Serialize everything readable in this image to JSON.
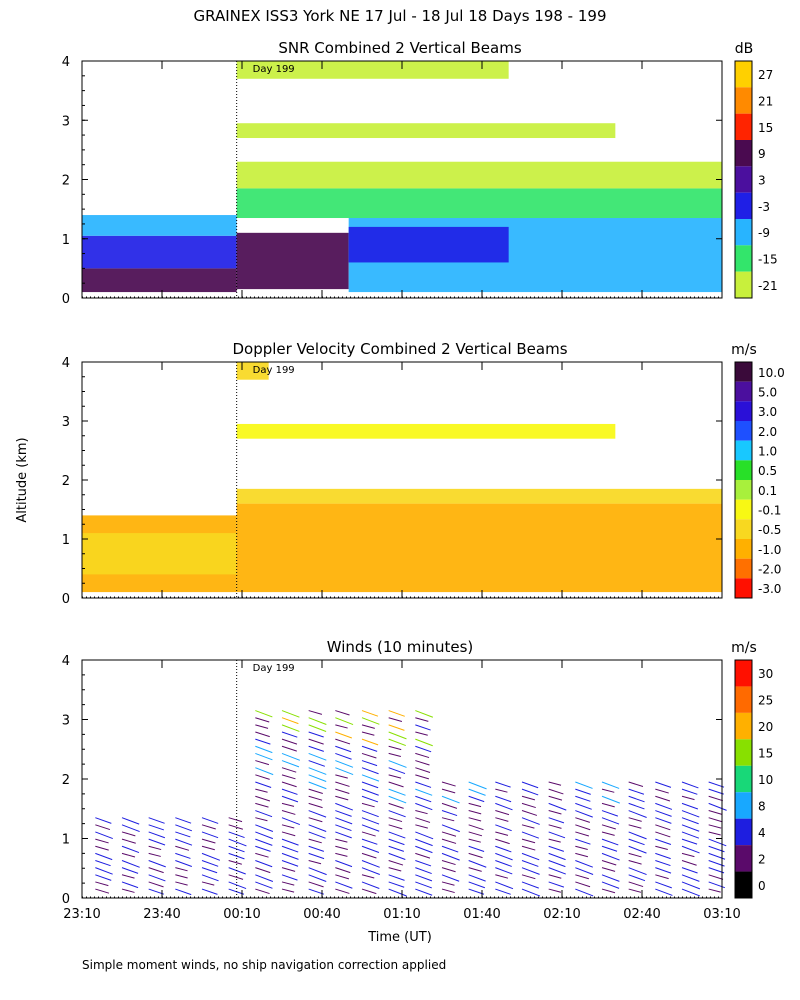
{
  "page": {
    "title": "GRAINEX ISS3 York NE  17 Jul - 18 Jul 18 Days 198 - 199",
    "footnote": "Simple moment winds, no ship navigation correction applied",
    "ylabel": "Altitude (km)",
    "xlabel": "Time (UT)",
    "day_marker": "Day 199"
  },
  "chart_data": [
    {
      "type": "heatmap",
      "title": "SNR Combined 2 Vertical Beams",
      "units": "dB",
      "xlabel": "Time (UT)",
      "ylabel": "Altitude (km)",
      "xlim": [
        0,
        240
      ],
      "x_ticks": [
        "23:10",
        "23:40",
        "00:10",
        "00:40",
        "01:10",
        "01:40",
        "02:10",
        "02:40",
        "03:10"
      ],
      "ylim": [
        0,
        4
      ],
      "y_ticks": [
        "0",
        "1",
        "2",
        "3",
        "4"
      ],
      "day_marker_x": 58,
      "colorbar_labels": [
        "27",
        "21",
        "15",
        "9",
        "3",
        "-3",
        "-9",
        "-15",
        "-21"
      ],
      "colorbar_colors": [
        "#ffd000",
        "#ff8a00",
        "#ff2400",
        "#4a0a50",
        "#4b0f9e",
        "#1f1fe6",
        "#28b4ff",
        "#33e56b",
        "#c8f03c"
      ],
      "bands": [
        {
          "y0": 0.1,
          "y1": 0.5,
          "x0": 0,
          "x1": 58,
          "color": "#4a0a50"
        },
        {
          "y0": 0.5,
          "y1": 1.05,
          "x0": 0,
          "x1": 58,
          "color": "#1f1fe6"
        },
        {
          "y0": 1.05,
          "y1": 1.4,
          "x0": 0,
          "x1": 58,
          "color": "#28b4ff"
        },
        {
          "y0": 0.15,
          "y1": 1.1,
          "x0": 58,
          "x1": 100,
          "color": "#4a0a50"
        },
        {
          "y0": 0.1,
          "y1": 1.35,
          "x0": 100,
          "x1": 240,
          "color": "#28b4ff"
        },
        {
          "y0": 0.6,
          "y1": 1.2,
          "x0": 100,
          "x1": 160,
          "color": "#1f1fe6"
        },
        {
          "y0": 1.35,
          "y1": 1.85,
          "x0": 58,
          "x1": 240,
          "color": "#33e56b"
        },
        {
          "y0": 1.85,
          "y1": 2.3,
          "x0": 58,
          "x1": 240,
          "color": "#c8f03c"
        },
        {
          "y0": 2.7,
          "y1": 2.95,
          "x0": 58,
          "x1": 200,
          "color": "#c8f03c"
        },
        {
          "y0": 3.7,
          "y1": 4.0,
          "x0": 58,
          "x1": 160,
          "color": "#c8f03c"
        }
      ]
    },
    {
      "type": "heatmap",
      "title": "Doppler Velocity Combined 2 Vertical Beams",
      "units": "m/s",
      "xlabel": "Time (UT)",
      "ylabel": "Altitude (km)",
      "xlim": [
        0,
        240
      ],
      "x_ticks": [
        "23:10",
        "23:40",
        "00:10",
        "00:40",
        "01:10",
        "01:40",
        "02:10",
        "02:40",
        "03:10"
      ],
      "ylim": [
        0,
        4
      ],
      "y_ticks": [
        "0",
        "1",
        "2",
        "3",
        "4"
      ],
      "day_marker_x": 58,
      "colorbar_labels": [
        "10.0",
        "5.0",
        "3.0",
        "2.0",
        "1.0",
        "0.5",
        "0.1",
        "-0.1",
        "-0.5",
        "-1.0",
        "-2.0",
        "-3.0"
      ],
      "colorbar_colors": [
        "#3a0a3a",
        "#4b0f9e",
        "#2a10d8",
        "#1e50ff",
        "#18c8ff",
        "#28e028",
        "#a8f03c",
        "#f8f814",
        "#f8d820",
        "#ffb000",
        "#ff7000",
        "#ff1000"
      ],
      "bands": [
        {
          "y0": 0.1,
          "y1": 1.4,
          "x0": 0,
          "x1": 58,
          "color": "#ffb000"
        },
        {
          "y0": 0.4,
          "y1": 1.1,
          "x0": 0,
          "x1": 58,
          "color": "#f8d820"
        },
        {
          "y0": 0.1,
          "y1": 1.6,
          "x0": 58,
          "x1": 240,
          "color": "#ffb000"
        },
        {
          "y0": 1.6,
          "y1": 1.85,
          "x0": 58,
          "x1": 240,
          "color": "#f8d820"
        },
        {
          "y0": 2.7,
          "y1": 2.95,
          "x0": 58,
          "x1": 200,
          "color": "#f8f814"
        },
        {
          "y0": 3.7,
          "y1": 4.0,
          "x0": 58,
          "x1": 70,
          "color": "#f8d820"
        }
      ]
    },
    {
      "type": "scatter",
      "title": "Winds (10 minutes)",
      "units": "m/s",
      "xlabel": "Time (UT)",
      "ylabel": "Altitude (km)",
      "xlim": [
        0,
        240
      ],
      "x_ticks": [
        "23:10",
        "23:40",
        "00:10",
        "00:40",
        "01:10",
        "01:40",
        "02:10",
        "02:40",
        "03:10"
      ],
      "ylim": [
        0,
        4
      ],
      "y_ticks": [
        "0",
        "1",
        "2",
        "3",
        "4"
      ],
      "day_marker_x": 58,
      "colorbar_labels": [
        "30",
        "25",
        "20",
        "15",
        "10",
        "8",
        "4",
        "2",
        "0"
      ],
      "colorbar_colors": [
        "#ff1000",
        "#ff6a00",
        "#ffb000",
        "#88e000",
        "#18d878",
        "#18a8ff",
        "#1e1ee0",
        "#5a0a6a",
        "#000000"
      ],
      "wind_columns_minutes": [
        5,
        15,
        25,
        35,
        45,
        55,
        65,
        75,
        85,
        95,
        105,
        115,
        125,
        135,
        145,
        155,
        165,
        175,
        185,
        195,
        205,
        215,
        225,
        235
      ]
    }
  ]
}
